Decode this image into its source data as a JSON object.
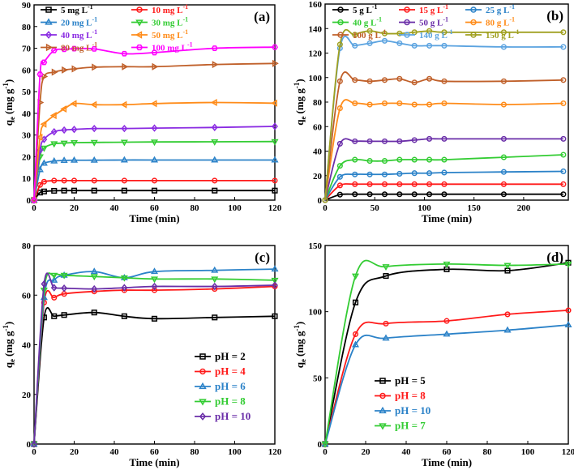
{
  "colors": {
    "black": "#000000",
    "red": "#ff1a1a",
    "blue": "#2b82c8",
    "green": "#33cc33",
    "orange": "#ff8c1a",
    "brown": "#c0602a",
    "magenta": "#ff00ff",
    "purple": "#6a2ea8",
    "navy": "#1f5fa8",
    "olive": "#a0a020",
    "lightblue": "#5ba3e0"
  },
  "chart_data": [
    {
      "panel": "a",
      "panel_label": "(a)",
      "type": "line",
      "xlabel": "Time (min)",
      "ylabel": "q",
      "ylabel_sub": "e",
      "ylabel_unit": "(mg g",
      "ylabel_sup": "-1",
      "ylabel_close": ")",
      "xlim": [
        0,
        120
      ],
      "ylim": [
        0,
        90
      ],
      "xticks": [
        0,
        20,
        40,
        60,
        80,
        100,
        120
      ],
      "yticks": [
        0,
        10,
        20,
        30,
        40,
        50,
        60,
        70,
        80,
        90
      ],
      "x": [
        0,
        3,
        5,
        10,
        15,
        20,
        30,
        45,
        60,
        90,
        120
      ],
      "legend_cols": 2,
      "series": [
        {
          "name": "5 mg L",
          "sup": "-1",
          "marker": "square",
          "color": "#000000",
          "values": [
            0,
            3.5,
            4.0,
            4.3,
            4.4,
            4.4,
            4.4,
            4.4,
            4.4,
            4.4,
            4.4
          ]
        },
        {
          "name": "10 mg L",
          "sup": "-1",
          "marker": "circle",
          "color": "#ff1a1a",
          "values": [
            0,
            7,
            8.5,
            9.0,
            9.0,
            9.0,
            9.0,
            9.0,
            9.0,
            9.0,
            9.0
          ]
        },
        {
          "name": "20 mg L",
          "sup": "-1",
          "marker": "triangle-up",
          "color": "#2b82c8",
          "values": [
            0,
            14,
            17,
            18,
            18.3,
            18.4,
            18.4,
            18.5,
            18.5,
            18.5,
            18.5
          ]
        },
        {
          "name": "30 mg L",
          "sup": "-1",
          "marker": "triangle-down",
          "color": "#33cc33",
          "values": [
            0,
            20,
            24,
            26,
            26.3,
            26.5,
            26.6,
            26.7,
            26.8,
            26.9,
            27.0
          ]
        },
        {
          "name": "40 mg L",
          "sup": "-1",
          "marker": "diamond",
          "color": "#8a2be2",
          "values": [
            0,
            23,
            28,
            31.5,
            32.3,
            32.6,
            33.0,
            33.0,
            33.2,
            33.5,
            34.0
          ]
        },
        {
          "name": "50 mg L",
          "sup": "-1",
          "marker": "triangle-left",
          "color": "#ff8c1a",
          "values": [
            0,
            29,
            35,
            39,
            42,
            44.5,
            44.0,
            44.0,
            44.5,
            45.0,
            44.7
          ]
        },
        {
          "name": "80 mg L",
          "sup": "-1",
          "marker": "triangle-right",
          "color": "#c0602a",
          "values": [
            0,
            45,
            57,
            59,
            60,
            60.5,
            61.3,
            61.5,
            61.5,
            62.5,
            63.0
          ]
        },
        {
          "name": "100 mg L",
          "sup": "-1",
          "marker": "hexagon",
          "color": "#ff00ff",
          "values": [
            0,
            58,
            63.5,
            69,
            69.5,
            69.8,
            69.7,
            67.5,
            68.0,
            70.0,
            70.5
          ]
        }
      ]
    },
    {
      "panel": "b",
      "panel_label": "(b)",
      "type": "line",
      "xlabel": "Time (min)",
      "ylabel": "q",
      "ylabel_sub": "e",
      "ylabel_unit": "(mg g",
      "ylabel_sup": "-1",
      "ylabel_close": ")",
      "xlim": [
        0,
        245
      ],
      "ylim": [
        0,
        160
      ],
      "xticks": [
        0,
        50,
        100,
        150,
        200
      ],
      "yticks": [
        0,
        20,
        40,
        60,
        80,
        100,
        120,
        140,
        160
      ],
      "x": [
        0,
        15,
        30,
        45,
        60,
        75,
        90,
        105,
        120,
        180,
        240
      ],
      "legend_cols": 3,
      "series": [
        {
          "name": "5 g L",
          "sup": "-1",
          "marker": "circle",
          "color": "#000000",
          "values": [
            0,
            4.5,
            4.8,
            4.8,
            4.8,
            4.8,
            4.8,
            4.8,
            4.8,
            4.8,
            4.8
          ]
        },
        {
          "name": "15 g L",
          "sup": "-1",
          "marker": "circle",
          "color": "#ff1a1a",
          "values": [
            0,
            12,
            13,
            13,
            13,
            13,
            13,
            13,
            13,
            13,
            13
          ]
        },
        {
          "name": "25 g L",
          "sup": "-1",
          "marker": "circle",
          "color": "#2b82c8",
          "values": [
            0,
            19,
            21,
            21,
            21,
            21.5,
            22,
            22,
            22.5,
            23,
            23.5
          ]
        },
        {
          "name": "40 g L",
          "sup": "-1",
          "marker": "circle",
          "color": "#33cc33",
          "values": [
            0,
            28,
            33,
            32,
            32,
            33,
            33,
            33,
            33,
            35,
            37
          ]
        },
        {
          "name": "50 g L",
          "sup": "-1",
          "marker": "circle",
          "color": "#6a2ea8",
          "values": [
            0,
            46,
            48,
            48,
            48,
            48,
            49,
            50,
            50,
            50,
            50
          ]
        },
        {
          "name": "80 g L",
          "sup": "-1",
          "marker": "circle",
          "color": "#ff8c1a",
          "values": [
            0,
            75,
            79,
            78,
            79,
            79,
            78,
            78,
            79,
            78,
            79
          ]
        },
        {
          "name": "100 g L",
          "sup": "-1",
          "marker": "circle",
          "color": "#c0602a",
          "values": [
            0,
            97,
            98,
            97,
            98,
            99,
            96,
            99,
            97,
            97,
            98
          ]
        },
        {
          "name": "140 g L",
          "sup": "-1",
          "marker": "circle",
          "color": "#5ba3e0",
          "values": [
            0,
            124,
            126,
            128,
            130,
            128,
            126,
            126,
            126,
            125,
            125
          ]
        },
        {
          "name": "150 g L",
          "sup": "-1",
          "marker": "circle",
          "color": "#a0a020",
          "values": [
            0,
            127,
            135,
            138,
            136,
            136,
            137,
            138,
            137,
            137,
            137
          ]
        }
      ]
    },
    {
      "panel": "c",
      "panel_label": "(c)",
      "type": "line",
      "xlabel": "Time (min)",
      "ylabel": "q",
      "ylabel_sub": "e",
      "ylabel_unit": "(mg g",
      "ylabel_sup": "-1",
      "ylabel_close": ")",
      "xlim": [
        0,
        120
      ],
      "ylim": [
        0,
        80
      ],
      "xticks": [
        0,
        20,
        40,
        60,
        80,
        100,
        120
      ],
      "yticks": [
        0,
        20,
        40,
        60,
        80
      ],
      "x": [
        0,
        5,
        10,
        15,
        30,
        45,
        60,
        90,
        120
      ],
      "legend_cols": 1,
      "series": [
        {
          "name": "pH = 2",
          "sup": "",
          "marker": "square",
          "color": "#000000",
          "values": [
            0,
            51,
            51.5,
            52,
            53,
            51.5,
            50.5,
            51,
            51.5
          ]
        },
        {
          "name": "pH = 4",
          "sup": "",
          "marker": "circle",
          "color": "#ff1a1a",
          "values": [
            0,
            57,
            59,
            60.5,
            61.5,
            62,
            62,
            62.5,
            63.5
          ]
        },
        {
          "name": "pH = 6",
          "sup": "",
          "marker": "triangle-up",
          "color": "#2b82c8",
          "values": [
            0,
            59,
            66,
            68,
            69.5,
            67,
            69.5,
            70,
            70.5
          ]
        },
        {
          "name": "pH = 8",
          "sup": "",
          "marker": "triangle-down",
          "color": "#33cc33",
          "values": [
            0,
            62,
            68,
            68,
            67.5,
            67,
            66.5,
            66.5,
            66
          ]
        },
        {
          "name": "pH = 10",
          "sup": "",
          "marker": "diamond",
          "color": "#6a2ea8",
          "values": [
            0,
            64.5,
            63,
            62.8,
            62.5,
            63,
            63.5,
            63.5,
            64
          ]
        }
      ]
    },
    {
      "panel": "d",
      "panel_label": "(d)",
      "type": "line",
      "xlabel": "Time (min)",
      "ylabel": "q",
      "ylabel_sub": "e",
      "ylabel_unit": "(mg g",
      "ylabel_sup": "-1",
      "ylabel_close": ")",
      "xlim": [
        0,
        120
      ],
      "ylim": [
        0,
        150
      ],
      "xticks": [
        0,
        20,
        40,
        60,
        80,
        100,
        120
      ],
      "yticks": [
        0,
        50,
        100,
        150
      ],
      "x": [
        0,
        15,
        30,
        60,
        90,
        120
      ],
      "legend_cols": 1,
      "series": [
        {
          "name": "pH = 5",
          "sup": "",
          "marker": "square",
          "color": "#000000",
          "values": [
            0,
            107,
            127,
            132,
            131,
            137
          ]
        },
        {
          "name": "pH = 8",
          "sup": "",
          "marker": "circle",
          "color": "#ff1a1a",
          "values": [
            0,
            83,
            91,
            93,
            98,
            101
          ]
        },
        {
          "name": "pH = 10",
          "sup": "",
          "marker": "triangle-up",
          "color": "#2b82c8",
          "values": [
            0,
            75,
            80,
            83,
            86,
            90
          ]
        },
        {
          "name": "pH = 7",
          "sup": "",
          "marker": "triangle-down",
          "color": "#33cc33",
          "values": [
            0,
            127,
            134,
            136,
            135,
            136
          ]
        }
      ]
    }
  ]
}
